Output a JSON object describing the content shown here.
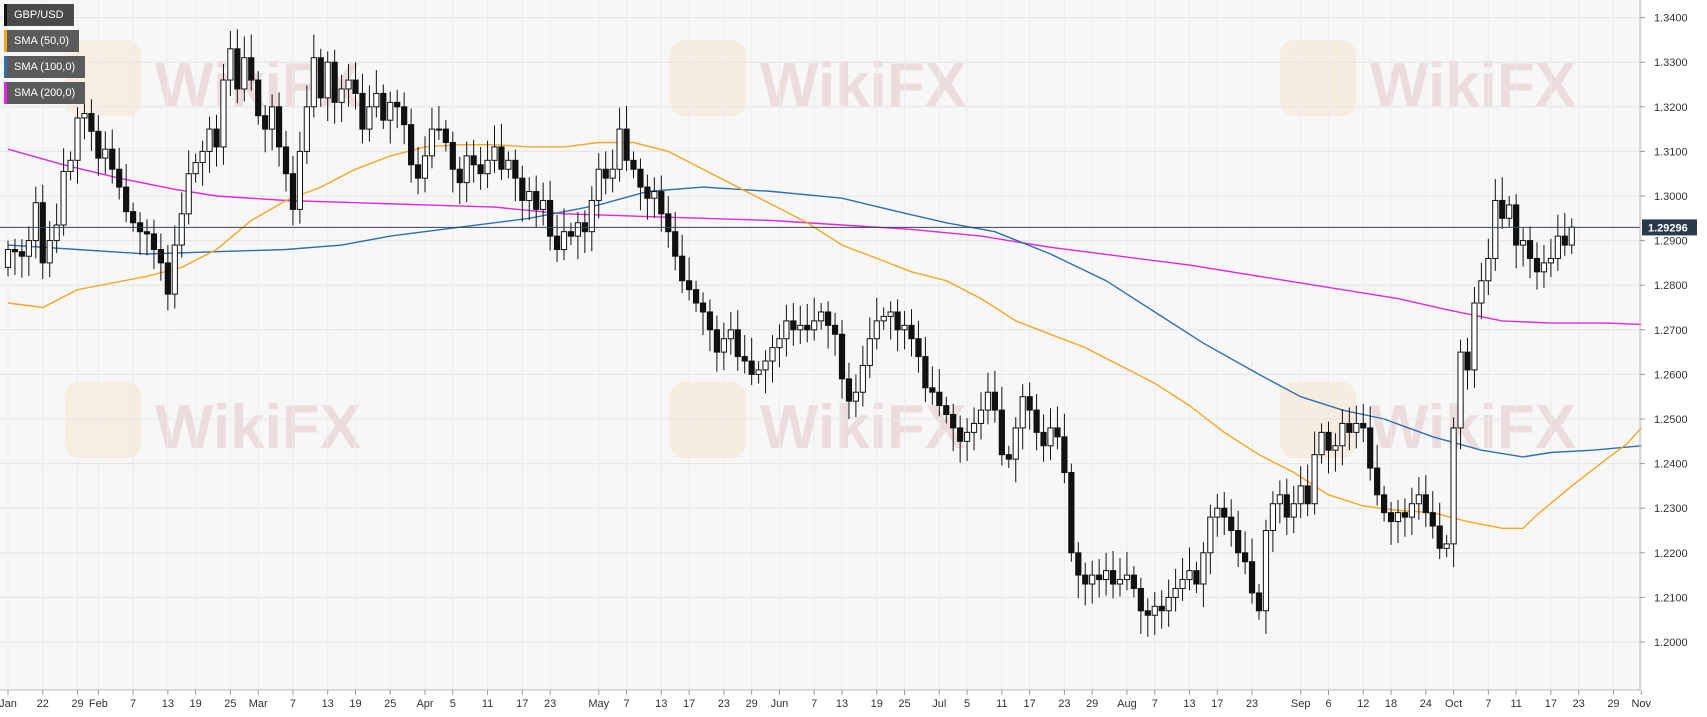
{
  "legend": [
    {
      "label": "GBP/USD",
      "color": "#111111"
    },
    {
      "label": "SMA (50,0)",
      "color": "#f5a623"
    },
    {
      "label": "SMA (100,0)",
      "color": "#2f6fb0"
    },
    {
      "label": "SMA (200,0)",
      "color": "#e026e0"
    }
  ],
  "watermark": "WikiFX",
  "chart_data": {
    "type": "candlestick",
    "symbol": "GBP/USD",
    "last_price_label": "1.29296",
    "last_price": 1.29296,
    "ylim": [
      1.193,
      1.343
    ],
    "y_ticks": [
      "1.2000",
      "1.2100",
      "1.2200",
      "1.2300",
      "1.2400",
      "1.2500",
      "1.2600",
      "1.2700",
      "1.2800",
      "1.2900",
      "1.3000",
      "1.3100",
      "1.3200",
      "1.3300",
      "1.3400"
    ],
    "grid": true,
    "x_ticks": [
      {
        "label": "Jan",
        "i": 0
      },
      {
        "label": "22",
        "i": 5
      },
      {
        "label": "29",
        "i": 10
      },
      {
        "label": "Feb",
        "i": 13
      },
      {
        "label": "7",
        "i": 18
      },
      {
        "label": "13",
        "i": 23
      },
      {
        "label": "19",
        "i": 27
      },
      {
        "label": "25",
        "i": 32
      },
      {
        "label": "Mar",
        "i": 36
      },
      {
        "label": "7",
        "i": 41
      },
      {
        "label": "13",
        "i": 46
      },
      {
        "label": "19",
        "i": 50
      },
      {
        "label": "25",
        "i": 55
      },
      {
        "label": "Apr",
        "i": 60
      },
      {
        "label": "5",
        "i": 64
      },
      {
        "label": "11",
        "i": 69
      },
      {
        "label": "17",
        "i": 74
      },
      {
        "label": "23",
        "i": 78
      },
      {
        "label": "May",
        "i": 85
      },
      {
        "label": "7",
        "i": 89
      },
      {
        "label": "13",
        "i": 94
      },
      {
        "label": "17",
        "i": 98
      },
      {
        "label": "23",
        "i": 103
      },
      {
        "label": "29",
        "i": 107
      },
      {
        "label": "Jun",
        "i": 111
      },
      {
        "label": "7",
        "i": 116
      },
      {
        "label": "13",
        "i": 120
      },
      {
        "label": "19",
        "i": 125
      },
      {
        "label": "25",
        "i": 129
      },
      {
        "label": "Jul",
        "i": 134
      },
      {
        "label": "5",
        "i": 138
      },
      {
        "label": "11",
        "i": 143
      },
      {
        "label": "17",
        "i": 147
      },
      {
        "label": "23",
        "i": 152
      },
      {
        "label": "29",
        "i": 156
      },
      {
        "label": "Aug",
        "i": 161
      },
      {
        "label": "7",
        "i": 165
      },
      {
        "label": "13",
        "i": 170
      },
      {
        "label": "17",
        "i": 174
      },
      {
        "label": "23",
        "i": 179
      },
      {
        "label": "Sep",
        "i": 186
      },
      {
        "label": "6",
        "i": 190
      },
      {
        "label": "12",
        "i": 195
      },
      {
        "label": "18",
        "i": 199
      },
      {
        "label": "24",
        "i": 204
      },
      {
        "label": "Oct",
        "i": 208
      },
      {
        "label": "7",
        "i": 213
      },
      {
        "label": "11",
        "i": 217
      },
      {
        "label": "17",
        "i": 222
      },
      {
        "label": "23",
        "i": 226
      },
      {
        "label": "29",
        "i": 231
      },
      {
        "label": "Nov",
        "i": 235
      }
    ],
    "closes": [
      1.288,
      1.2875,
      1.2865,
      1.29,
      1.2985,
      1.285,
      1.29,
      1.2935,
      1.3055,
      1.308,
      1.3175,
      1.3185,
      1.3145,
      1.3085,
      1.3105,
      1.306,
      1.302,
      1.2965,
      1.294,
      1.292,
      1.2915,
      1.288,
      1.285,
      1.278,
      1.289,
      1.296,
      1.305,
      1.3075,
      1.31,
      1.315,
      1.311,
      1.326,
      1.333,
      1.324,
      1.331,
      1.326,
      1.318,
      1.315,
      1.32,
      1.311,
      1.305,
      1.297,
      1.31,
      1.32,
      1.331,
      1.322,
      1.33,
      1.321,
      1.324,
      1.326,
      1.323,
      1.315,
      1.32,
      1.323,
      1.317,
      1.321,
      1.32,
      1.316,
      1.307,
      1.304,
      1.309,
      1.315,
      1.315,
      1.312,
      1.306,
      1.303,
      1.309,
      1.307,
      1.305,
      1.308,
      1.311,
      1.306,
      1.308,
      1.304,
      1.299,
      1.301,
      1.297,
      1.299,
      1.291,
      1.288,
      1.292,
      1.291,
      1.294,
      1.292,
      1.299,
      1.306,
      1.304,
      1.306,
      1.315,
      1.308,
      1.306,
      1.302,
      1.2995,
      1.301,
      1.296,
      1.292,
      1.2865,
      1.281,
      1.279,
      1.276,
      1.274,
      1.27,
      1.265,
      1.268,
      1.27,
      1.264,
      1.263,
      1.26,
      1.261,
      1.263,
      1.266,
      1.268,
      1.272,
      1.27,
      1.271,
      1.27,
      1.272,
      1.274,
      1.271,
      1.269,
      1.259,
      1.254,
      1.256,
      1.262,
      1.268,
      1.272,
      1.273,
      1.274,
      1.27,
      1.271,
      1.268,
      1.264,
      1.257,
      1.256,
      1.253,
      1.251,
      1.248,
      1.245,
      1.247,
      1.249,
      1.252,
      1.256,
      1.252,
      1.242,
      1.241,
      1.248,
      1.255,
      1.252,
      1.247,
      1.244,
      1.248,
      1.246,
      1.238,
      1.22,
      1.215,
      1.213,
      1.215,
      1.214,
      1.216,
      1.213,
      1.214,
      1.215,
      1.212,
      1.207,
      1.206,
      1.208,
      1.207,
      1.21,
      1.212,
      1.214,
      1.216,
      1.213,
      1.22,
      1.228,
      1.23,
      1.228,
      1.225,
      1.22,
      1.218,
      1.211,
      1.207,
      1.225,
      1.231,
      1.233,
      1.228,
      1.231,
      1.235,
      1.231,
      1.242,
      1.247,
      1.243,
      1.244,
      1.249,
      1.247,
      1.249,
      1.248,
      1.239,
      1.233,
      1.229,
      1.227,
      1.229,
      1.228,
      1.231,
      1.233,
      1.229,
      1.226,
      1.221,
      1.222,
      1.248,
      1.265,
      1.261,
      1.276,
      1.281,
      1.286,
      1.299,
      1.295,
      1.298,
      1.289,
      1.29,
      1.286,
      1.283,
      1.285,
      1.286,
      1.291,
      1.289,
      1.293
    ],
    "sma50": [
      [
        0,
        1.276
      ],
      [
        5,
        1.275
      ],
      [
        10,
        1.279
      ],
      [
        15,
        1.2805
      ],
      [
        20,
        1.282
      ],
      [
        25,
        1.284
      ],
      [
        30,
        1.288
      ],
      [
        35,
        1.2945
      ],
      [
        40,
        1.299
      ],
      [
        45,
        1.302
      ],
      [
        50,
        1.306
      ],
      [
        55,
        1.309
      ],
      [
        60,
        1.311
      ],
      [
        65,
        1.3115
      ],
      [
        70,
        1.3115
      ],
      [
        75,
        1.311
      ],
      [
        80,
        1.311
      ],
      [
        85,
        1.312
      ],
      [
        90,
        1.312
      ],
      [
        95,
        1.31
      ],
      [
        100,
        1.306
      ],
      [
        105,
        1.302
      ],
      [
        110,
        1.298
      ],
      [
        115,
        1.294
      ],
      [
        120,
        1.289
      ],
      [
        125,
        1.286
      ],
      [
        130,
        1.283
      ],
      [
        135,
        1.281
      ],
      [
        140,
        1.277
      ],
      [
        145,
        1.272
      ],
      [
        150,
        1.269
      ],
      [
        155,
        1.266
      ],
      [
        160,
        1.262
      ],
      [
        165,
        1.258
      ],
      [
        170,
        1.253
      ],
      [
        175,
        1.247
      ],
      [
        180,
        1.242
      ],
      [
        185,
        1.238
      ],
      [
        190,
        1.233
      ],
      [
        195,
        1.2305
      ],
      [
        200,
        1.2295
      ],
      [
        205,
        1.229
      ],
      [
        210,
        1.227
      ],
      [
        215,
        1.2255
      ],
      [
        218,
        1.2255
      ],
      [
        220,
        1.2285
      ],
      [
        225,
        1.235
      ],
      [
        230,
        1.241
      ],
      [
        233,
        1.2445
      ],
      [
        235,
        1.248
      ]
    ],
    "sma100": [
      [
        0,
        1.289
      ],
      [
        10,
        1.288
      ],
      [
        20,
        1.287
      ],
      [
        30,
        1.2875
      ],
      [
        40,
        1.288
      ],
      [
        48,
        1.289
      ],
      [
        55,
        1.291
      ],
      [
        65,
        1.293
      ],
      [
        75,
        1.295
      ],
      [
        85,
        1.298
      ],
      [
        92,
        1.301
      ],
      [
        100,
        1.302
      ],
      [
        110,
        1.301
      ],
      [
        120,
        1.2995
      ],
      [
        128,
        1.2965
      ],
      [
        135,
        1.294
      ],
      [
        142,
        1.292
      ],
      [
        150,
        1.287
      ],
      [
        158,
        1.281
      ],
      [
        165,
        1.274
      ],
      [
        172,
        1.267
      ],
      [
        180,
        1.26
      ],
      [
        186,
        1.255
      ],
      [
        192,
        1.252
      ],
      [
        198,
        1.25
      ],
      [
        205,
        1.246
      ],
      [
        212,
        1.243
      ],
      [
        218,
        1.2415
      ],
      [
        222,
        1.2425
      ],
      [
        228,
        1.243
      ],
      [
        235,
        1.244
      ]
    ],
    "sma200": [
      [
        0,
        1.3105
      ],
      [
        8,
        1.307
      ],
      [
        16,
        1.304
      ],
      [
        24,
        1.3015
      ],
      [
        30,
        1.3
      ],
      [
        40,
        1.299
      ],
      [
        50,
        1.2985
      ],
      [
        60,
        1.298
      ],
      [
        70,
        1.2975
      ],
      [
        80,
        1.296
      ],
      [
        90,
        1.2955
      ],
      [
        100,
        1.295
      ],
      [
        110,
        1.2945
      ],
      [
        120,
        1.2935
      ],
      [
        130,
        1.2925
      ],
      [
        140,
        1.291
      ],
      [
        150,
        1.2885
      ],
      [
        160,
        1.2865
      ],
      [
        170,
        1.2845
      ],
      [
        180,
        1.282
      ],
      [
        190,
        1.2795
      ],
      [
        200,
        1.277
      ],
      [
        207,
        1.2745
      ],
      [
        215,
        1.272
      ],
      [
        222,
        1.2715
      ],
      [
        230,
        1.2715
      ],
      [
        235,
        1.2712
      ]
    ]
  }
}
